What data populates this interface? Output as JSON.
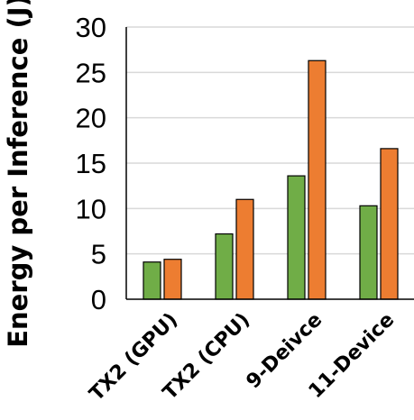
{
  "chart_data": {
    "type": "bar",
    "title": "",
    "xlabel": "",
    "ylabel": "Energy per Inference (J)",
    "categories": [
      "TX2 (GPU)",
      "TX2 (CPU)",
      "9-Deivce",
      "11-Device"
    ],
    "series": [
      {
        "values": [
          4.1,
          7.2,
          13.6,
          10.3
        ],
        "color": "#70ad47"
      },
      {
        "values": [
          4.4,
          11.0,
          26.3,
          16.6
        ],
        "color": "#ed7d31"
      }
    ],
    "ylim": [
      0,
      30
    ],
    "yticks": [
      0,
      5,
      10,
      15,
      20,
      25,
      30
    ],
    "grid": true,
    "legend": "none"
  }
}
